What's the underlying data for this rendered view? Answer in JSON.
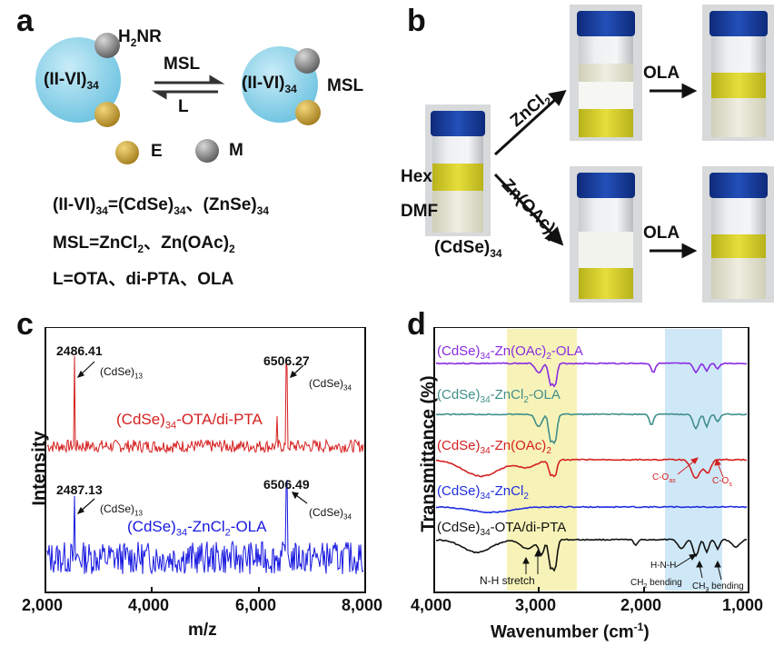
{
  "panels": {
    "a": "a",
    "b": "b",
    "c": "c",
    "d": "d"
  },
  "panel_a": {
    "left_core": "(II-VI)",
    "left_core_sub": "34",
    "amine": "H",
    "amine_sub": "2",
    "amine_rest": "NR",
    "forward": "MSL",
    "backward": "L",
    "right_core": "(II-VI)",
    "right_core_sub": "34",
    "right_label": "MSL",
    "legend_e": "E",
    "legend_m": "M",
    "eq1_a": "(II-VI)",
    "eq1_a_sub": "34",
    "eq1_b": "=(CdSe)",
    "eq1_b_sub": "34",
    "eq1_c": "、(ZnSe)",
    "eq1_c_sub": "34",
    "eq2_a": "MSL=ZnCl",
    "eq2_a_sub": "2",
    "eq2_b": "、Zn(OAc)",
    "eq2_b_sub": "2",
    "eq3": "L=OTA、di-PTA、OLA",
    "colors": {
      "core": "#8fd3ea",
      "e_sphere": "#c9a23c",
      "m_sphere": "#8a8a8a"
    }
  },
  "panel_b": {
    "solvent_top": "Hex",
    "solvent_bottom": "DMF",
    "start_label": "(CdSe)",
    "start_label_sub": "34",
    "route1": "ZnCl",
    "route1_sub": "2",
    "route2": "Zn(OAc)",
    "route2_sub": "2",
    "ola1": "OLA",
    "ola2": "OLA"
  },
  "panel_c": {
    "ylabel": "Intensity",
    "xlabel": "m/z",
    "xticks": [
      "2,000",
      "4,000",
      "6,000",
      "8,000"
    ],
    "red_label": "(CdSe)",
    "red_label_sub": "34",
    "red_label_rest": "-OTA/di-PTA",
    "blue_label": "(CdSe)",
    "blue_label_sub": "34",
    "blue_label_rest": "-ZnCl",
    "blue_label_sub2": "2",
    "blue_label_rest2": "-OLA",
    "red_peak1": "2486.41",
    "red_peak2": "6506.27",
    "blue_peak1": "2487.13",
    "blue_peak2": "6506.49",
    "ann_13": "(CdSe)",
    "ann_13_sub": "13",
    "ann_34": "(CdSe)",
    "ann_34_sub": "34"
  },
  "panel_d": {
    "ylabel": "Transmittance (%)",
    "xlabel": "Wavenumber (cm",
    "xlabel_sup": "-1",
    "xlabel_end": ")",
    "xticks": [
      "4,000",
      "3,000",
      "2,000",
      "1,000"
    ],
    "series_labels": [
      {
        "pre": "(CdSe)",
        "sub": "34",
        "post": "-Zn(OAc)",
        "sub2": "2",
        "post2": "-OLA",
        "color": "#8a2be2"
      },
      {
        "pre": "(CdSe)",
        "sub": "34",
        "post": "-ZnCl",
        "sub2": "2",
        "post2": "-OLA",
        "color": "#3f8f8a"
      },
      {
        "pre": "(CdSe)",
        "sub": "34",
        "post": "-Zn(OAc)",
        "sub2": "2",
        "post2": "",
        "color": "#d42020"
      },
      {
        "pre": "(CdSe)",
        "sub": "34",
        "post": "-ZnCl",
        "sub2": "2",
        "post2": "",
        "color": "#1e2de0"
      },
      {
        "pre": "(CdSe)",
        "sub": "34",
        "post": "-OTA/di-PTA",
        "sub2": "",
        "post2": "",
        "color": "#111111"
      }
    ],
    "ann_nh": "N-H stretch",
    "ann_hnh": "H-N-H",
    "ann_ch2": "CH",
    "ann_ch2_sub": "2",
    "ann_ch2_rest": " bending",
    "ann_ch3": "CH",
    "ann_ch3_sub": "3",
    "ann_ch3_rest": " bending",
    "ann_coas": "C-O",
    "ann_coas_sub": "as",
    "ann_cos": "C-O",
    "ann_cos_sub": "s",
    "highlight_yellow": "#f7f3b8",
    "highlight_blue": "#cfe8f7"
  }
}
